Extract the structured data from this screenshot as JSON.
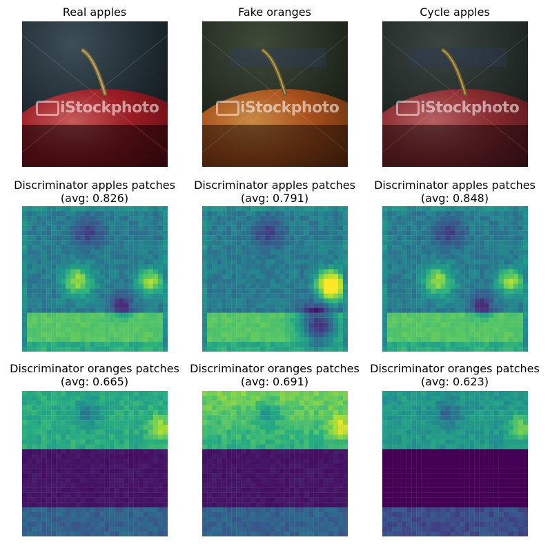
{
  "rows": [
    {
      "panels": [
        {
          "title": "Real apples",
          "kind": "photo",
          "variant": "real"
        },
        {
          "title": "Fake oranges",
          "kind": "photo",
          "variant": "fake"
        },
        {
          "title": "Cycle apples",
          "kind": "photo",
          "variant": "cycle"
        }
      ]
    },
    {
      "panels": [
        {
          "title": "Discriminator apples patches",
          "avg": "(avg: 0.826)",
          "kind": "heatmap",
          "pattern": "apples-a"
        },
        {
          "title": "Discriminator apples patches",
          "avg": "(avg: 0.791)",
          "kind": "heatmap",
          "pattern": "apples-b"
        },
        {
          "title": "Discriminator apples patches",
          "avg": "(avg: 0.848)",
          "kind": "heatmap",
          "pattern": "apples-c"
        }
      ]
    },
    {
      "panels": [
        {
          "title": "Discriminator oranges patches",
          "avg": "(avg: 0.665)",
          "kind": "heatmap",
          "pattern": "oranges-a"
        },
        {
          "title": "Discriminator oranges patches",
          "avg": "(avg: 0.691)",
          "kind": "heatmap",
          "pattern": "oranges-b"
        },
        {
          "title": "Discriminator oranges patches",
          "avg": "(avg: 0.623)",
          "kind": "heatmap",
          "pattern": "oranges-c"
        }
      ]
    }
  ],
  "watermark": "iStockphoto",
  "colormap": "viridis"
}
